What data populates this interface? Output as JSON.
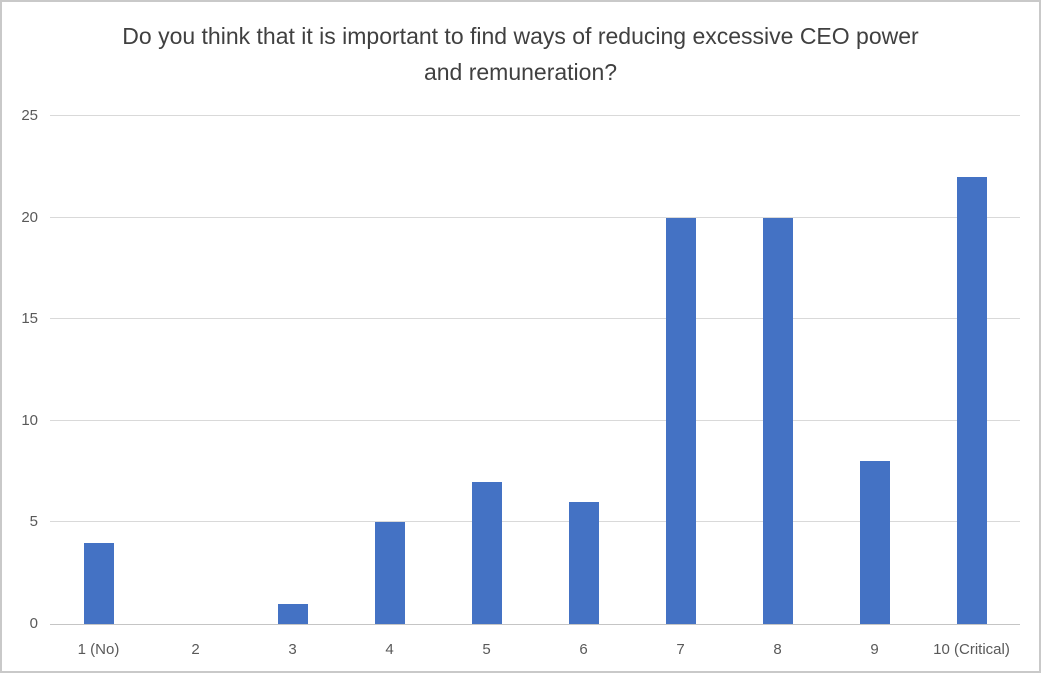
{
  "chart_data": {
    "type": "bar",
    "title": "Do you think that it is important to find ways of reducing excessive CEO power and remuneration?",
    "categories": [
      "1 (No)",
      "2",
      "3",
      "4",
      "5",
      "6",
      "7",
      "8",
      "9",
      "10 (Critical)"
    ],
    "values": [
      4,
      0,
      1,
      5,
      7,
      6,
      20,
      20,
      8,
      22
    ],
    "xlabel": "",
    "ylabel": "",
    "ylim": [
      0,
      25
    ],
    "yticks": [
      0,
      5,
      10,
      15,
      20,
      25
    ],
    "grid": true,
    "legend": false,
    "colors": {
      "bar": "#4472c4",
      "gridline": "#d9d9d9",
      "axis_line": "#c5c5c5",
      "title_text": "#404040",
      "tick_label_text": "#595959",
      "background": "#ffffff",
      "frame_border": "#c9c9c9"
    }
  }
}
